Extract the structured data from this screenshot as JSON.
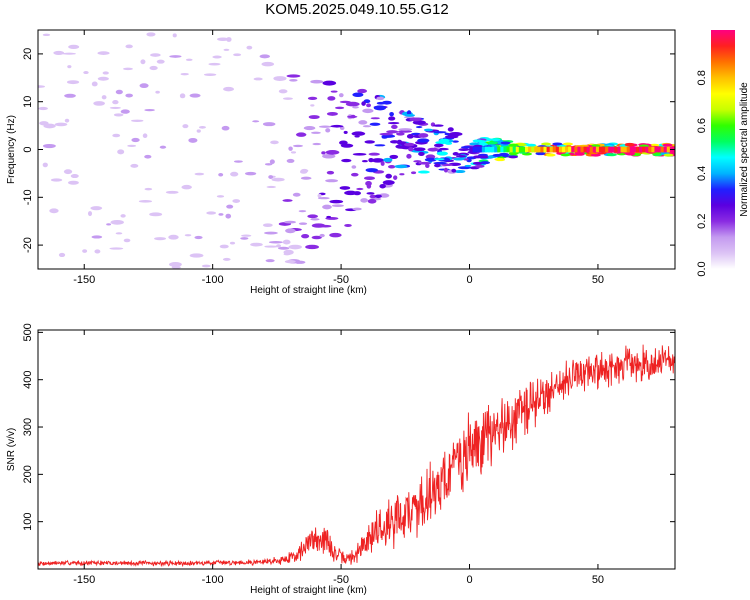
{
  "title": "KOM5.2025.049.10.55.G12",
  "chart_data": [
    {
      "type": "heatmap",
      "xlabel": "Height of straight line (km)",
      "ylabel": "Frequency (Hz)",
      "xlim": [
        -168,
        80
      ],
      "ylim": [
        -25,
        25
      ],
      "xticks": [
        -150,
        -100,
        -50,
        0,
        50
      ],
      "yticks": [
        -20,
        -10,
        0,
        10,
        20
      ],
      "grid": false,
      "colorbar": {
        "label": "Normalized spectral amplitude",
        "range": [
          0,
          1
        ],
        "ticks": [
          0.0,
          0.2,
          0.4,
          0.6,
          0.8
        ],
        "colors": [
          "#ffffff",
          "#dcc3f5",
          "#c49af0",
          "#8a2be2",
          "#5a00e0",
          "#2020ff",
          "#00b4ff",
          "#00ffff",
          "#00ff60",
          "#30ff00",
          "#c8ff00",
          "#ffff00",
          "#ffc000",
          "#ff7000",
          "#ff2020",
          "#ff0080"
        ]
      },
      "description_points": [
        {
          "x": -160,
          "y_center": 0,
          "amplitude": 0.05
        },
        {
          "x": -100,
          "y_center": 0,
          "amplitude": 0.08
        },
        {
          "x": -70,
          "y_center": -6,
          "amplitude": 0.12
        },
        {
          "x": -55,
          "y_center": -3,
          "amplitude": 0.18
        },
        {
          "x": -40,
          "y_center": 0,
          "amplitude": 0.25
        },
        {
          "x": -25,
          "y_center": 1,
          "amplitude": 0.3
        },
        {
          "x": -10,
          "y_center": 0,
          "amplitude": 0.35
        },
        {
          "x": 0,
          "y_center": -1,
          "amplitude": 0.35
        },
        {
          "x": 10,
          "y_center": 0,
          "amplitude": 0.5
        },
        {
          "x": 30,
          "y_center": 0,
          "amplitude": 0.8
        },
        {
          "x": 50,
          "y_center": 0,
          "amplitude": 0.9
        },
        {
          "x": 80,
          "y_center": 0,
          "amplitude": 0.95
        }
      ]
    },
    {
      "type": "line",
      "xlabel": "Height of straight line (km)",
      "ylabel": "SNR (v/v)",
      "xlim": [
        -168,
        80
      ],
      "ylim": [
        0,
        505
      ],
      "xticks": [
        -150,
        -100,
        -50,
        0,
        50
      ],
      "yticks": [
        100,
        200,
        300,
        400,
        500
      ],
      "grid": false,
      "series": [
        {
          "color": "#ee2222",
          "x": [
            -168,
            -150,
            -120,
            -100,
            -90,
            -80,
            -72,
            -66,
            -60,
            -56,
            -52,
            -48,
            -44,
            -40,
            -36,
            -32,
            -28,
            -24,
            -20,
            -16,
            -12,
            -8,
            -4,
            0,
            5,
            10,
            15,
            20,
            25,
            30,
            35,
            40,
            50,
            60,
            70,
            80
          ],
          "y": [
            12,
            13,
            12,
            13,
            14,
            15,
            20,
            35,
            70,
            60,
            30,
            20,
            30,
            60,
            85,
            95,
            110,
            120,
            130,
            160,
            180,
            200,
            230,
            250,
            270,
            290,
            310,
            330,
            350,
            370,
            390,
            410,
            420,
            430,
            435,
            440
          ],
          "spread": [
            6,
            6,
            6,
            6,
            6,
            8,
            12,
            25,
            40,
            40,
            20,
            15,
            25,
            45,
            55,
            60,
            65,
            70,
            75,
            80,
            80,
            85,
            85,
            90,
            85,
            80,
            75,
            70,
            65,
            55,
            50,
            45,
            45,
            45,
            45,
            45
          ]
        }
      ]
    }
  ]
}
